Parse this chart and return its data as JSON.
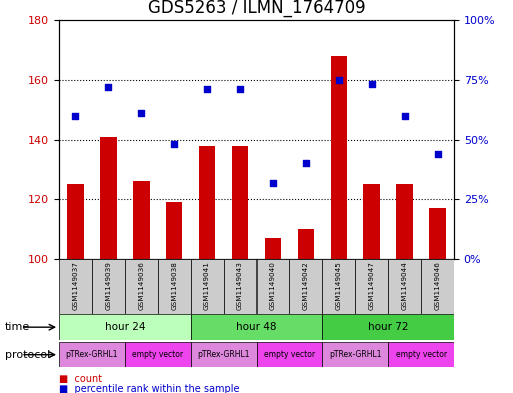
{
  "title": "GDS5263 / ILMN_1764709",
  "samples": [
    "GSM1149037",
    "GSM1149039",
    "GSM1149036",
    "GSM1149038",
    "GSM1149041",
    "GSM1149043",
    "GSM1149040",
    "GSM1149042",
    "GSM1149045",
    "GSM1149047",
    "GSM1149044",
    "GSM1149046"
  ],
  "counts": [
    125,
    141,
    126,
    119,
    138,
    138,
    107,
    110,
    168,
    125,
    125,
    117
  ],
  "percentiles": [
    60,
    72,
    61,
    48,
    71,
    71,
    32,
    40,
    75,
    73,
    60,
    44
  ],
  "ylim_left": [
    100,
    180
  ],
  "ylim_right": [
    0,
    100
  ],
  "yticks_left": [
    100,
    120,
    140,
    160,
    180
  ],
  "yticks_right": [
    0,
    25,
    50,
    75,
    100
  ],
  "ytick_right_labels": [
    "0%",
    "25%",
    "50%",
    "75%",
    "100%"
  ],
  "bar_color": "#cc0000",
  "dot_color": "#0000cc",
  "time_groups": [
    {
      "label": "hour 24",
      "start": 0,
      "end": 4,
      "color": "#bbffbb"
    },
    {
      "label": "hour 48",
      "start": 4,
      "end": 8,
      "color": "#66dd66"
    },
    {
      "label": "hour 72",
      "start": 8,
      "end": 12,
      "color": "#44cc44"
    }
  ],
  "protocol_groups": [
    {
      "label": "pTRex-GRHL1",
      "start": 0,
      "end": 2,
      "color": "#dd88dd"
    },
    {
      "label": "empty vector",
      "start": 2,
      "end": 4,
      "color": "#ee44ee"
    },
    {
      "label": "pTRex-GRHL1",
      "start": 4,
      "end": 6,
      "color": "#dd88dd"
    },
    {
      "label": "empty vector",
      "start": 6,
      "end": 8,
      "color": "#ee44ee"
    },
    {
      "label": "pTRex-GRHL1",
      "start": 8,
      "end": 10,
      "color": "#dd88dd"
    },
    {
      "label": "empty vector",
      "start": 10,
      "end": 12,
      "color": "#ee44ee"
    }
  ],
  "background_color": "#ffffff",
  "grid_color": "#000000",
  "title_fontsize": 12,
  "axis_label_color_left": "#cc0000",
  "axis_label_color_right": "#0000cc",
  "sample_box_color": "#cccccc",
  "grid_dotted_ticks": [
    120,
    140,
    160
  ]
}
